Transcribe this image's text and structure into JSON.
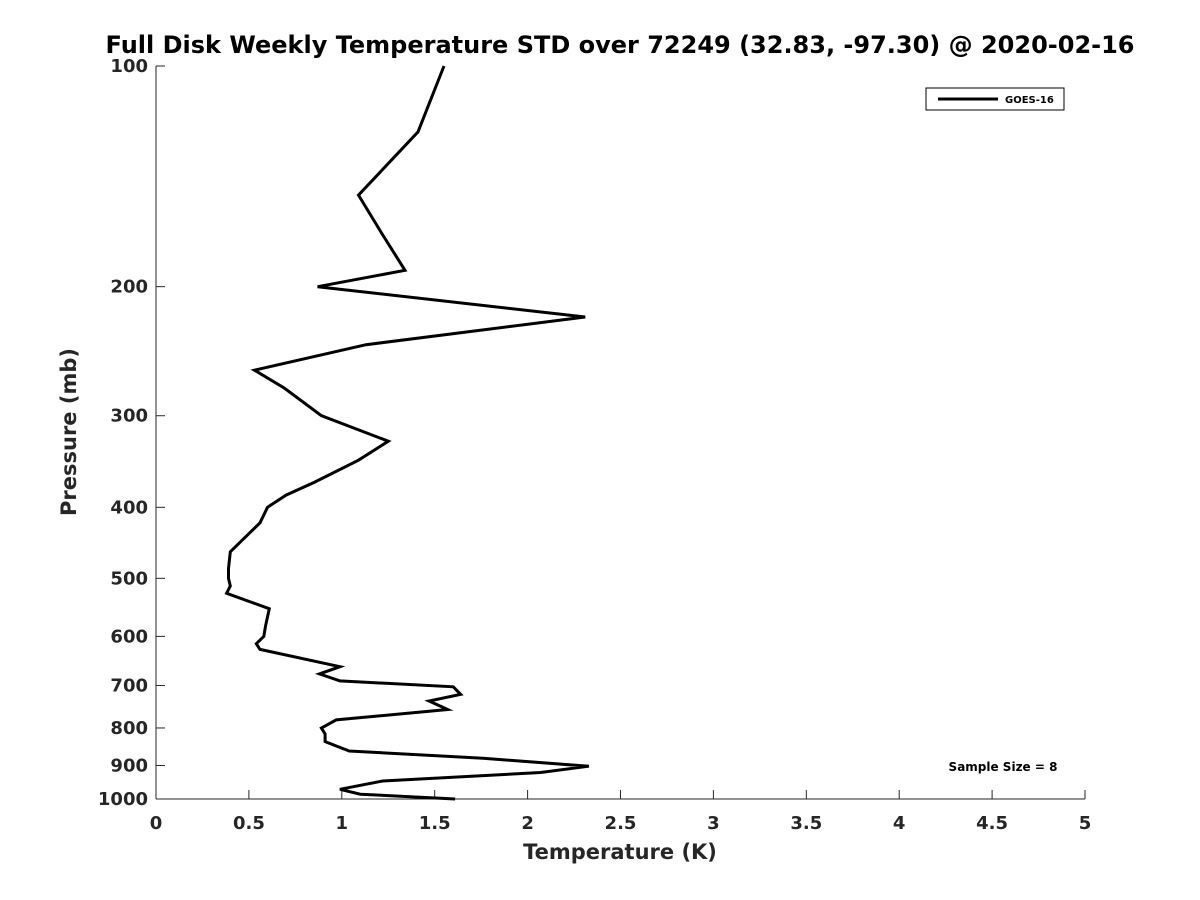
{
  "chart_data": {
    "type": "line",
    "title": "Full Disk Weekly Temperature STD over 72249 (32.83, -97.30) @ 2020-02-16",
    "xlabel": "Temperature (K)",
    "ylabel": "Pressure (mb)",
    "xlim": [
      0,
      5
    ],
    "ylim": [
      100,
      1000
    ],
    "y_scale": "log",
    "y_reversed": true,
    "x_ticks": [
      "0",
      "0.5",
      "1",
      "1.5",
      "2",
      "2.5",
      "3",
      "3.5",
      "4",
      "4.5",
      "5"
    ],
    "y_ticks": [
      "100",
      "200",
      "300",
      "400",
      "500",
      "600",
      "700",
      "800",
      "900",
      "1000"
    ],
    "grid": false,
    "legend_position": "top-right",
    "annotation": "Sample Size = 8",
    "series": [
      {
        "name": "GOES-16",
        "color": "#000000",
        "x": [
          1.55,
          1.41,
          1.09,
          1.22,
          1.34,
          0.87,
          2.31,
          1.13,
          0.53,
          0.69,
          0.89,
          1.25,
          1.09,
          0.85,
          0.7,
          0.6,
          0.56,
          0.4,
          0.39,
          0.39,
          0.4,
          0.38,
          0.61,
          0.59,
          0.58,
          0.54,
          0.56,
          0.99,
          0.88,
          0.99,
          1.6,
          1.64,
          1.47,
          1.57,
          0.97,
          0.89,
          0.91,
          0.91,
          1.04,
          1.76,
          2.33,
          2.07,
          1.22,
          0.99,
          1.1,
          1.61
        ],
        "y": [
          100,
          123,
          150,
          170,
          190,
          200,
          220,
          240,
          260,
          275,
          300,
          325,
          345,
          370,
          385,
          400,
          420,
          460,
          485,
          500,
          512,
          524,
          550,
          580,
          600,
          614,
          625,
          660,
          675,
          690,
          703,
          720,
          735,
          755,
          780,
          800,
          815,
          835,
          860,
          880,
          902,
          920,
          945,
          970,
          985,
          1000
        ]
      }
    ]
  }
}
